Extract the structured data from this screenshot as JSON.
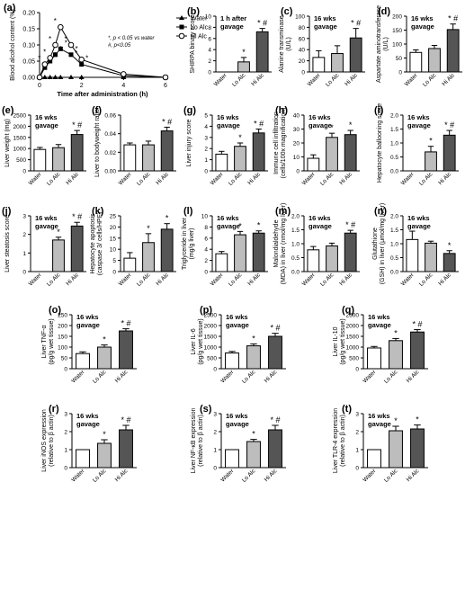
{
  "colors": {
    "water": "#ffffff",
    "lo_alc": "#bdbdbd",
    "hi_alc": "#555555",
    "stroke": "#000000"
  },
  "chart_data": [
    {
      "id": "a",
      "panel_label": "(a)",
      "type": "line",
      "ylabel": "Blood alcohol content (%)",
      "xlabel": "Time after administration (h)",
      "ylim": [
        0,
        0.2
      ],
      "yticks": [
        "0.00",
        "0.05",
        "0.10",
        "0.15",
        "0.20"
      ],
      "xlim": [
        0,
        6
      ],
      "xticks": [
        "0",
        "2",
        "4",
        "6"
      ],
      "legend_position": "top-right",
      "annotation": [
        "*, p < 0.05 vs water",
        "#, p<0.05"
      ],
      "series": [
        {
          "name": "Water",
          "marker": "triangle",
          "points": [
            [
              0,
              0
            ],
            [
              0.25,
              0
            ],
            [
              0.5,
              0
            ],
            [
              0.75,
              0
            ],
            [
              1,
              0
            ],
            [
              1.5,
              0
            ],
            [
              2,
              0
            ],
            [
              4,
              0
            ],
            [
              6,
              0
            ]
          ]
        },
        {
          "name": "Lo Alc",
          "marker": "square",
          "points": [
            [
              0,
              0
            ],
            [
              0.25,
              0.03
            ],
            [
              0.5,
              0.05
            ],
            [
              0.75,
              0.07
            ],
            [
              1,
              0.088
            ],
            [
              1.5,
              0.07
            ],
            [
              2,
              0.04
            ],
            [
              4,
              0.005
            ],
            [
              6,
              0
            ]
          ],
          "labels": [
            "",
            "*",
            "*",
            "*",
            "*",
            "*",
            "*",
            "",
            ""
          ]
        },
        {
          "name": "Hi Alc",
          "marker": "circle",
          "points": [
            [
              0,
              0
            ],
            [
              0.25,
              0.04
            ],
            [
              0.5,
              0.06
            ],
            [
              0.75,
              0.1
            ],
            [
              1,
              0.155
            ],
            [
              1.5,
              0.1
            ],
            [
              2,
              0.055
            ],
            [
              4,
              0.01
            ],
            [
              6,
              0
            ]
          ],
          "labels": [
            "",
            "*",
            "*",
            "*",
            "*",
            "*",
            "*",
            "",
            ""
          ]
        }
      ]
    },
    {
      "id": "b",
      "panel_label": "(b)",
      "type": "bar",
      "ylabel": "SHIRPA binary score",
      "note": "1 h after gavage",
      "ylim": [
        0,
        10
      ],
      "yticks": [
        "0",
        "2",
        "4",
        "6",
        "8",
        "10"
      ],
      "categories": [
        "Water",
        "Lo Alc",
        "Hi Alc"
      ],
      "values": [
        0,
        1.8,
        7.2
      ],
      "errors": [
        0,
        0.8,
        0.6
      ],
      "labels": [
        "",
        "*",
        "* #"
      ]
    },
    {
      "id": "c",
      "panel_label": "(c)",
      "type": "bar",
      "ylabel": "Alanine transminase (U/L)",
      "note": "16 wks gavage",
      "ylim": [
        0,
        100
      ],
      "yticks": [
        "0",
        "20",
        "40",
        "60",
        "80",
        "100"
      ],
      "categories": [
        "Water",
        "Lo Alc",
        "Hi Alc"
      ],
      "values": [
        26,
        33,
        61
      ],
      "errors": [
        12,
        14,
        17
      ],
      "labels": [
        "",
        "",
        "* #"
      ]
    },
    {
      "id": "d",
      "panel_label": "(d)",
      "type": "bar",
      "ylabel": "Aspartate aminotransferase (U/L)",
      "note": "16 wks gavage",
      "ylim": [
        0,
        200
      ],
      "yticks": [
        "0",
        "50",
        "100",
        "150",
        "200"
      ],
      "categories": [
        "Water",
        "Lo Alc",
        "Hi Alc"
      ],
      "values": [
        70,
        84,
        152
      ],
      "errors": [
        9,
        11,
        20
      ],
      "labels": [
        "",
        "",
        "* #"
      ]
    },
    {
      "id": "e",
      "panel_label": "(e)",
      "type": "bar",
      "ylabel": "Liver weight (mg)",
      "note": "16 wks gavage",
      "ylim": [
        0,
        2500
      ],
      "yticks": [
        "0",
        "500",
        "1000",
        "1500",
        "2000",
        "2500"
      ],
      "categories": [
        "Water",
        "Lo Alc",
        "Hi Alc"
      ],
      "values": [
        960,
        1040,
        1630
      ],
      "errors": [
        90,
        140,
        180
      ],
      "labels": [
        "",
        "",
        "* #"
      ]
    },
    {
      "id": "f",
      "panel_label": "(f)",
      "type": "bar",
      "ylabel": "Liver to bodyweight ratio",
      "note": "",
      "ylim": [
        0,
        0.06
      ],
      "yticks": [
        "0.00",
        "0.02",
        "0.04",
        "0.06"
      ],
      "categories": [
        "Water",
        "Lo Alc",
        "Hi Alc"
      ],
      "values": [
        0.028,
        0.028,
        0.043
      ],
      "errors": [
        0.002,
        0.004,
        0.004
      ],
      "labels": [
        "",
        "",
        "* #"
      ]
    },
    {
      "id": "g",
      "panel_label": "(g)",
      "type": "bar",
      "ylabel": "Liver injury score",
      "note": "16 wks gavage",
      "ylim": [
        0,
        5
      ],
      "yticks": [
        "0",
        "1",
        "2",
        "3",
        "4",
        "5"
      ],
      "categories": [
        "Water",
        "Lo Alc",
        "Hi Alc"
      ],
      "values": [
        1.5,
        2.2,
        3.4
      ],
      "errors": [
        0.25,
        0.3,
        0.35
      ],
      "labels": [
        "",
        "*",
        "* #"
      ]
    },
    {
      "id": "h",
      "panel_label": "(h)",
      "type": "bar",
      "ylabel": "Immune cell infiltration (cells/100x magnification)",
      "note": "16 wks gavage",
      "ylim": [
        0,
        40
      ],
      "yticks": [
        "0",
        "10",
        "20",
        "30",
        "40"
      ],
      "categories": [
        "Water",
        "Lo Alc",
        "Hi Alc"
      ],
      "values": [
        9,
        24,
        26
      ],
      "errors": [
        2.5,
        3,
        3
      ],
      "labels": [
        "",
        "*",
        "*"
      ]
    },
    {
      "id": "i",
      "panel_label": "(i)",
      "type": "bar",
      "ylabel": "Hepatocyte ballooning score",
      "note": "16 wks gavage",
      "ylim": [
        0,
        2.0
      ],
      "yticks": [
        "0.0",
        "0.5",
        "1.0",
        "1.5",
        "2.0"
      ],
      "categories": [
        "Water",
        "Lo Alc",
        "Hi Alc"
      ],
      "values": [
        0,
        0.68,
        1.28
      ],
      "errors": [
        0,
        0.2,
        0.17
      ],
      "labels": [
        "",
        "*",
        "* #"
      ]
    },
    {
      "id": "j",
      "panel_label": "(j)",
      "type": "bar",
      "ylabel": "Liver steatosis score",
      "note": "16 wks gavage",
      "ylim": [
        0,
        3
      ],
      "yticks": [
        "0",
        "1",
        "2",
        "3"
      ],
      "categories": [
        "Water",
        "Lo Alc",
        "Hi Alc"
      ],
      "values": [
        0,
        1.7,
        2.45
      ],
      "errors": [
        0,
        0.15,
        0.2
      ],
      "labels": [
        "",
        "*",
        "* #"
      ]
    },
    {
      "id": "k",
      "panel_label": "(k)",
      "type": "bar",
      "ylabel": "Hepatocyte apoptosis (caspase 3/ cells/HPF)",
      "note": "",
      "ylim": [
        0,
        25
      ],
      "yticks": [
        "0",
        "5",
        "10",
        "15",
        "20",
        "25"
      ],
      "categories": [
        "Water",
        "Lo Alc",
        "Hi Alc"
      ],
      "values": [
        6,
        13,
        19
      ],
      "errors": [
        2.5,
        4,
        2.5
      ],
      "labels": [
        "",
        "*",
        "*"
      ]
    },
    {
      "id": "l",
      "panel_label": "(l)",
      "type": "bar",
      "ylabel": "Triglyceride in liver (mg/g liver)",
      "note": "16 wks gavage",
      "ylim": [
        0,
        10
      ],
      "yticks": [
        "0",
        "2",
        "4",
        "6",
        "8",
        "10"
      ],
      "categories": [
        "Water",
        "Lo Alc",
        "Hi Alc"
      ],
      "values": [
        3.2,
        6.6,
        6.9
      ],
      "errors": [
        0.4,
        0.6,
        0.4
      ],
      "labels": [
        "",
        "*",
        "*"
      ]
    },
    {
      "id": "m",
      "panel_label": "(m)",
      "type": "bar",
      "ylabel": "Malondialdehyde (MDA) in liver (nmol/mg liver)",
      "note": "16 wks gavage",
      "ylim": [
        0,
        2.0
      ],
      "yticks": [
        "0.0",
        "0.5",
        "1.0",
        "1.5",
        "2.0"
      ],
      "categories": [
        "Water",
        "Lo Alc",
        "Hi Alc"
      ],
      "values": [
        0.78,
        0.92,
        1.38
      ],
      "errors": [
        0.12,
        0.1,
        0.1
      ],
      "labels": [
        "",
        "",
        "* #"
      ]
    },
    {
      "id": "n",
      "panel_label": "(n)",
      "type": "bar",
      "ylabel": "Glutathione (GSH) in liver (μmol/mg liver)",
      "note": "16 wks gavage",
      "ylim": [
        0,
        2.0
      ],
      "yticks": [
        "0.0",
        "0.5",
        "1.0",
        "1.5",
        "2.0"
      ],
      "categories": [
        "Water",
        "Lo Alc",
        "Hi Alc"
      ],
      "values": [
        1.15,
        1.02,
        0.65
      ],
      "errors": [
        0.3,
        0.07,
        0.1
      ],
      "labels": [
        "",
        "",
        "*"
      ]
    },
    {
      "id": "o",
      "panel_label": "(o)",
      "type": "bar",
      "ylabel": "Liver TNF-α (pg/g wet tissue)",
      "note": "16 wks gavage",
      "ylim": [
        0,
        250
      ],
      "yticks": [
        "0",
        "50",
        "100",
        "150",
        "200",
        "250"
      ],
      "categories": [
        "Water",
        "Lo Alc",
        "Hi Alc"
      ],
      "values": [
        70,
        100,
        175
      ],
      "errors": [
        8,
        10,
        10
      ],
      "labels": [
        "",
        "*",
        "* #"
      ]
    },
    {
      "id": "p",
      "panel_label": "(p)",
      "type": "bar",
      "ylabel": "Liver IL-6 (pg/g wet tissue)",
      "note": "16 wks gavage",
      "ylim": [
        0,
        2500
      ],
      "yticks": [
        "0",
        "500",
        "1000",
        "1500",
        "2000",
        "2500"
      ],
      "categories": [
        "Water",
        "Lo Alc",
        "Hi Alc"
      ],
      "values": [
        730,
        1060,
        1500
      ],
      "errors": [
        70,
        90,
        140
      ],
      "labels": [
        "",
        "*",
        "* #"
      ]
    },
    {
      "id": "q",
      "panel_label": "(q)",
      "type": "bar",
      "ylabel": "Liver IL-10 (pg/g wet tissue)",
      "note": "16 wks gavage",
      "ylim": [
        0,
        2500
      ],
      "yticks": [
        "0",
        "500",
        "1000",
        "1500",
        "2000",
        "2500"
      ],
      "categories": [
        "Water",
        "Lo Alc",
        "Hi Alc"
      ],
      "values": [
        960,
        1300,
        1700
      ],
      "errors": [
        70,
        100,
        110
      ],
      "labels": [
        "",
        "*",
        "* #"
      ]
    },
    {
      "id": "r",
      "panel_label": "(r)",
      "type": "bar",
      "ylabel": "Liver iNOS expression (relative to β actin)",
      "note": "16 wks gavage",
      "ylim": [
        0,
        3
      ],
      "yticks": [
        "0",
        "1",
        "2",
        "3"
      ],
      "categories": [
        "Water",
        "Lo Alc",
        "Hi Alc"
      ],
      "values": [
        1.0,
        1.35,
        2.1
      ],
      "errors": [
        0,
        0.2,
        0.25
      ],
      "labels": [
        "",
        "*",
        "* #"
      ]
    },
    {
      "id": "s",
      "panel_label": "(s)",
      "type": "bar",
      "ylabel": "Liver NF-κB expression (relative to β actin)",
      "note": "16 wks gavage",
      "ylim": [
        0,
        3
      ],
      "yticks": [
        "0",
        "1",
        "2",
        "3"
      ],
      "categories": [
        "Water",
        "Lo Alc",
        "Hi Alc"
      ],
      "values": [
        1.0,
        1.45,
        2.1
      ],
      "errors": [
        0,
        0.12,
        0.25
      ],
      "labels": [
        "",
        "*",
        "* #"
      ]
    },
    {
      "id": "t",
      "panel_label": "(t)",
      "type": "bar",
      "ylabel": "Liver TLR-4 expression (relative to β actin)",
      "note": "16 wks gavage",
      "ylim": [
        0,
        3
      ],
      "yticks": [
        "0",
        "1",
        "2",
        "3"
      ],
      "categories": [
        "Water",
        "Lo Alc",
        "Hi Alc"
      ],
      "values": [
        1.0,
        2.05,
        2.15
      ],
      "errors": [
        0,
        0.25,
        0.22
      ],
      "labels": [
        "",
        "*",
        "*"
      ]
    }
  ]
}
